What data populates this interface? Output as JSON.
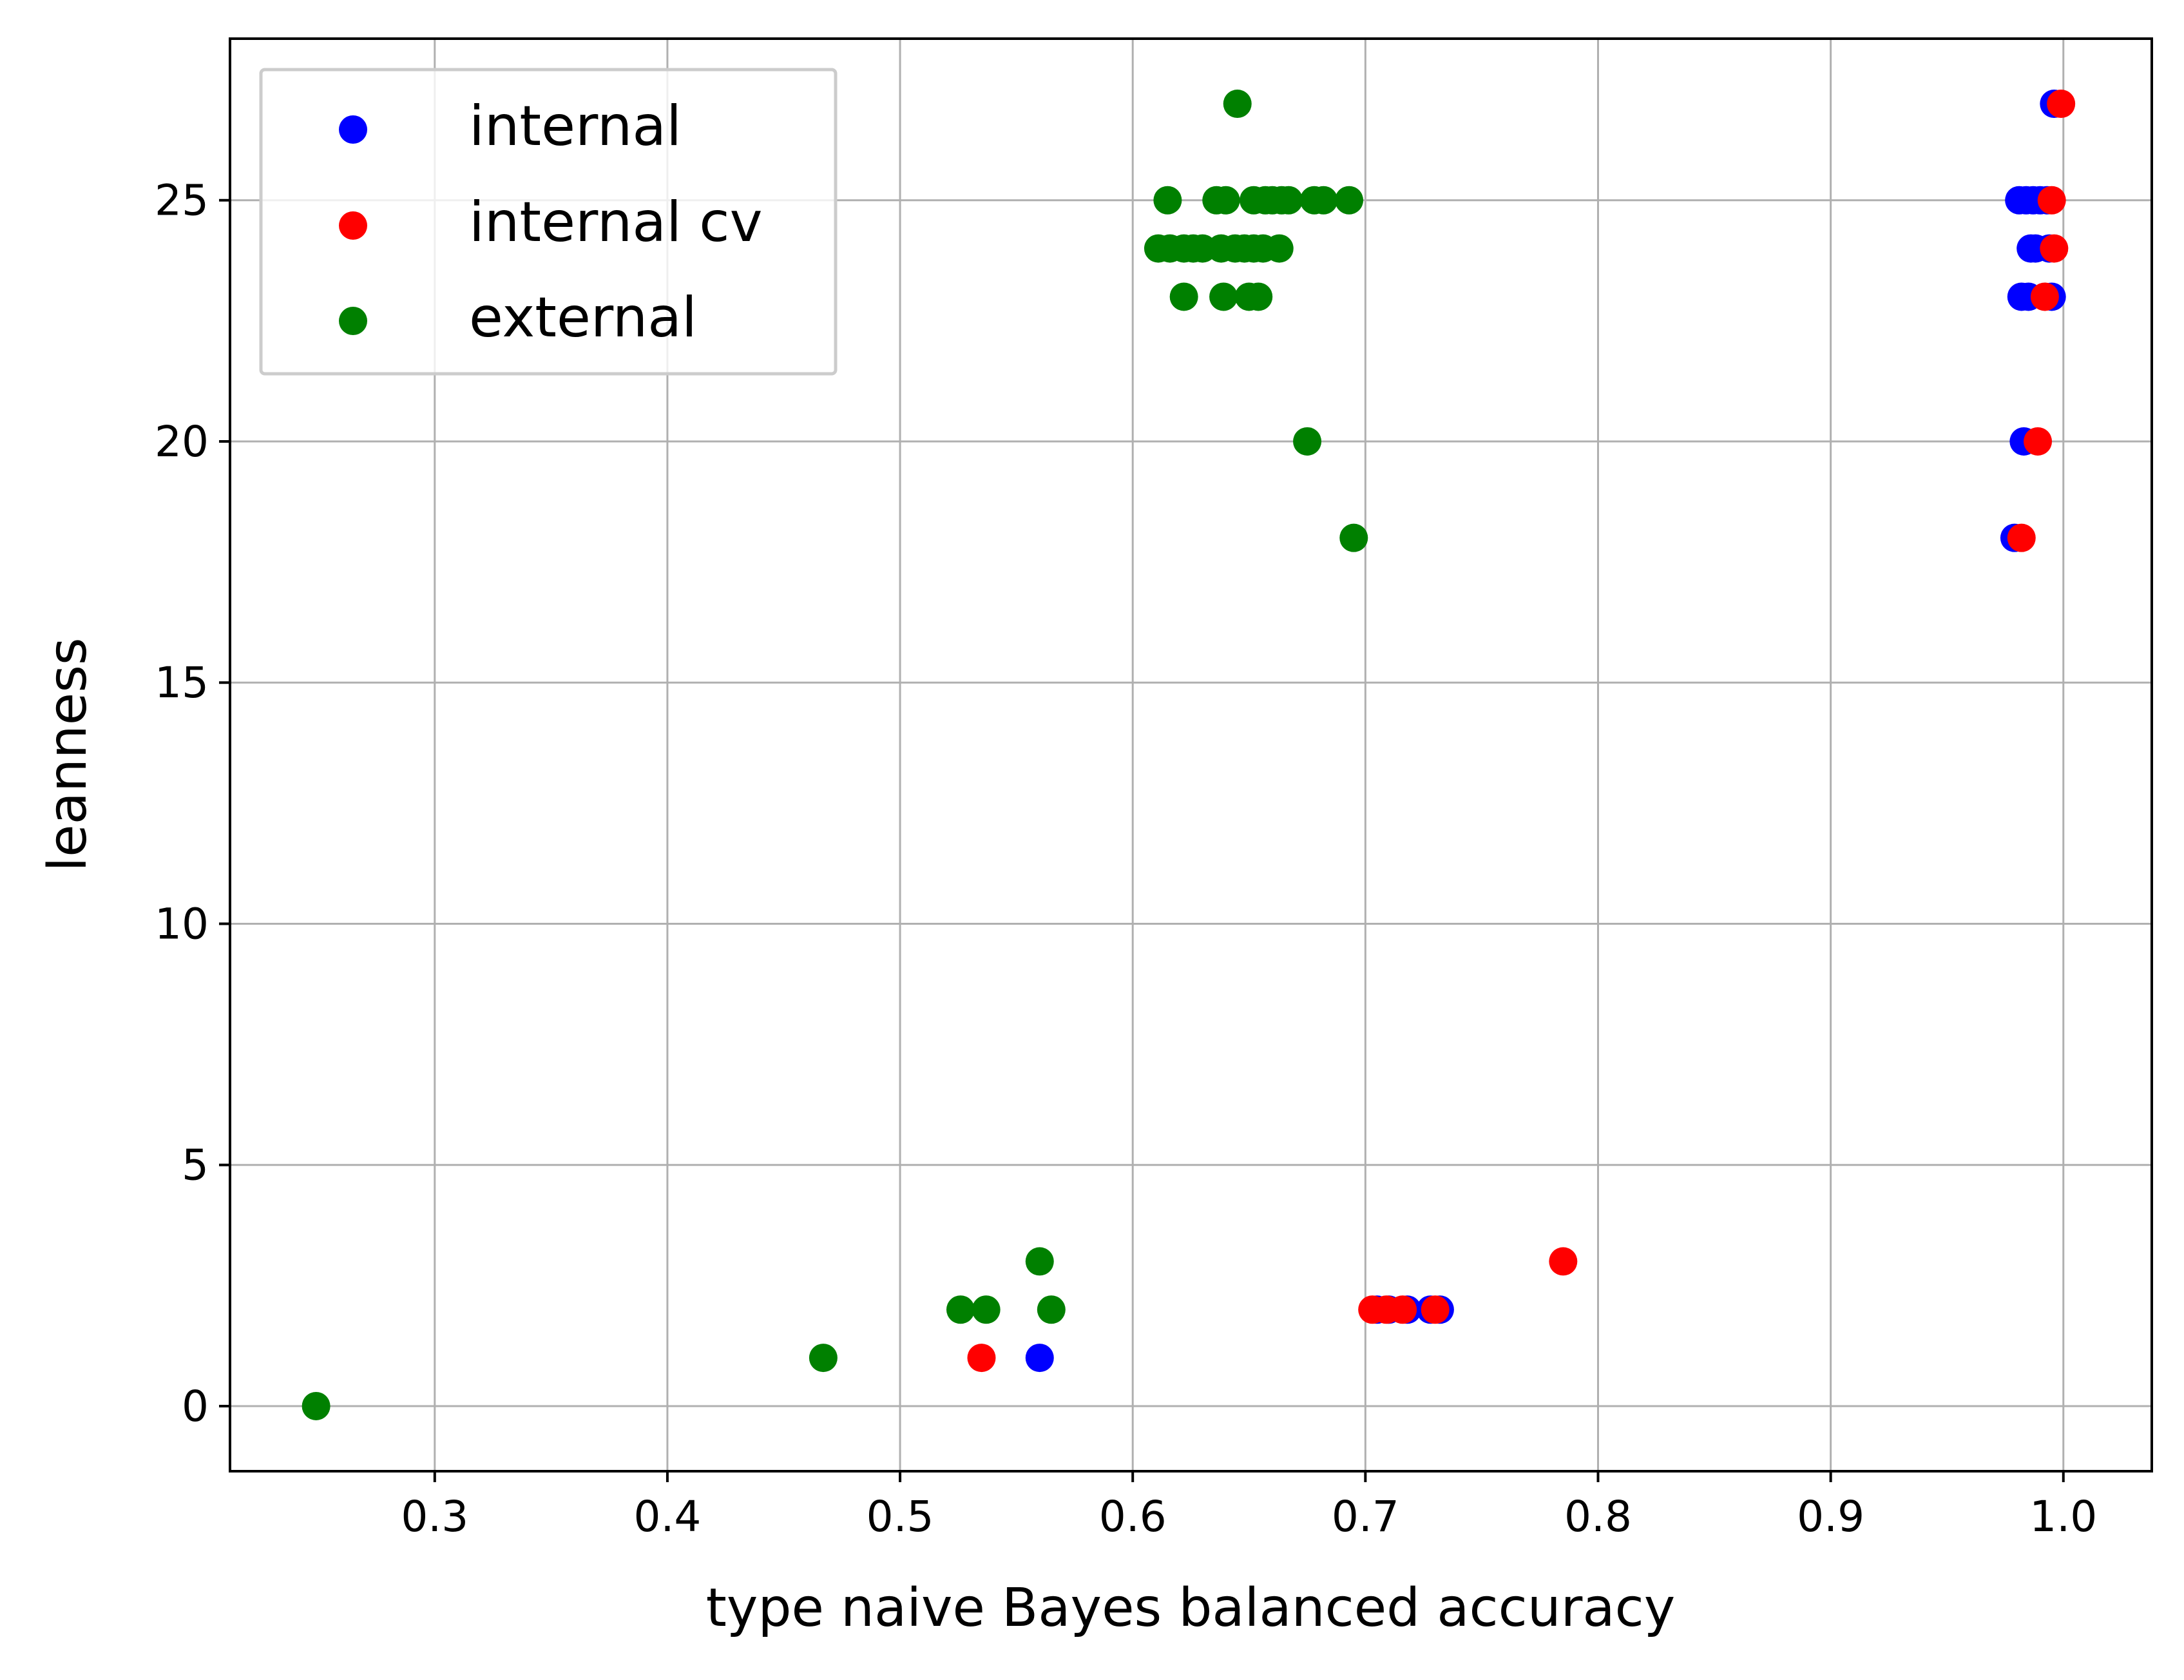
{
  "chart_data": {
    "type": "scatter",
    "xlabel": "type naive Bayes balanced accuracy",
    "ylabel": "leanness",
    "xlim": [
      0.212,
      1.038
    ],
    "ylim": [
      -1.35,
      28.35
    ],
    "xticks": [
      0.3,
      0.4,
      0.5,
      0.6,
      0.7,
      0.8,
      0.9,
      1.0
    ],
    "xtick_labels": [
      "0.3",
      "0.4",
      "0.5",
      "0.6",
      "0.7",
      "0.8",
      "0.9",
      "1.0"
    ],
    "yticks": [
      0,
      5,
      10,
      15,
      20,
      25
    ],
    "ytick_labels": [
      "0",
      "5",
      "10",
      "15",
      "20",
      "25"
    ],
    "grid": true,
    "legend_position": "top-left",
    "series": [
      {
        "name": "internal",
        "color": "#0000ff",
        "points": [
          [
            0.56,
            1
          ],
          [
            0.705,
            2
          ],
          [
            0.71,
            2
          ],
          [
            0.718,
            2
          ],
          [
            0.728,
            2
          ],
          [
            0.732,
            2
          ],
          [
            0.979,
            18
          ],
          [
            0.983,
            20
          ],
          [
            0.982,
            23
          ],
          [
            0.985,
            23
          ],
          [
            0.995,
            23
          ],
          [
            0.986,
            24
          ],
          [
            0.988,
            24
          ],
          [
            0.994,
            24
          ],
          [
            0.981,
            25
          ],
          [
            0.984,
            25
          ],
          [
            0.987,
            25
          ],
          [
            0.99,
            25
          ],
          [
            0.993,
            25
          ],
          [
            0.996,
            27
          ]
        ]
      },
      {
        "name": "internal cv",
        "color": "#ff0000",
        "points": [
          [
            0.535,
            1
          ],
          [
            0.703,
            2
          ],
          [
            0.709,
            2
          ],
          [
            0.716,
            2
          ],
          [
            0.73,
            2
          ],
          [
            0.785,
            3
          ],
          [
            0.982,
            18
          ],
          [
            0.989,
            20
          ],
          [
            0.992,
            23
          ],
          [
            0.996,
            24
          ],
          [
            0.995,
            25
          ],
          [
            0.999,
            27
          ]
        ]
      },
      {
        "name": "external",
        "color": "#008000",
        "points": [
          [
            0.249,
            0
          ],
          [
            0.467,
            1
          ],
          [
            0.526,
            2
          ],
          [
            0.537,
            2
          ],
          [
            0.565,
            2
          ],
          [
            0.56,
            3
          ],
          [
            0.695,
            18
          ],
          [
            0.675,
            20
          ],
          [
            0.622,
            23
          ],
          [
            0.639,
            23
          ],
          [
            0.65,
            23
          ],
          [
            0.654,
            23
          ],
          [
            0.611,
            24
          ],
          [
            0.616,
            24
          ],
          [
            0.622,
            24
          ],
          [
            0.626,
            24
          ],
          [
            0.63,
            24
          ],
          [
            0.638,
            24
          ],
          [
            0.644,
            24
          ],
          [
            0.648,
            24
          ],
          [
            0.652,
            24
          ],
          [
            0.656,
            24
          ],
          [
            0.663,
            24
          ],
          [
            0.615,
            25
          ],
          [
            0.636,
            25
          ],
          [
            0.64,
            25
          ],
          [
            0.652,
            25
          ],
          [
            0.657,
            25
          ],
          [
            0.66,
            25
          ],
          [
            0.664,
            25
          ],
          [
            0.667,
            25
          ],
          [
            0.678,
            25
          ],
          [
            0.682,
            25
          ],
          [
            0.693,
            25
          ],
          [
            0.645,
            27
          ]
        ]
      }
    ]
  }
}
